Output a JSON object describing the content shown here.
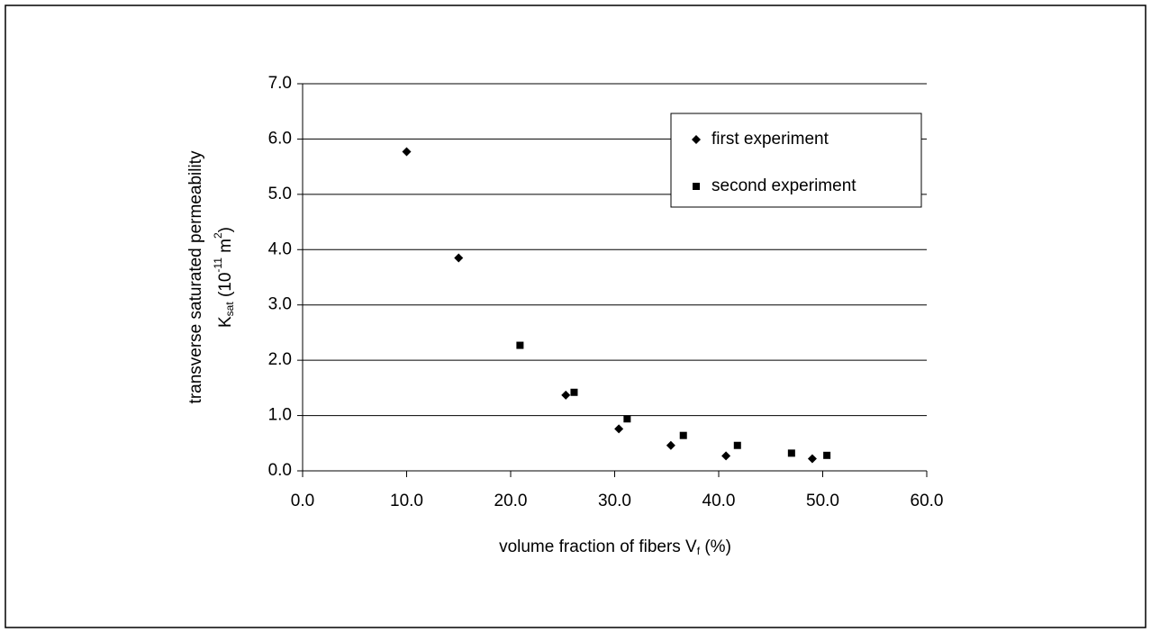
{
  "chart_data": {
    "type": "scatter",
    "x_label_parts": [
      "volume fraction of fibers V",
      "f",
      " (%)"
    ],
    "y_label_line1": "transverse saturated permeability",
    "y_label_parts": [
      "K",
      "sat",
      " (10",
      "-11",
      " m",
      "2",
      ")"
    ],
    "series": [
      {
        "name": "first experiment",
        "marker": "diamond",
        "color": "#000000",
        "x": [
          10.0,
          15.0,
          25.3,
          30.4,
          35.4,
          40.7,
          49.0
        ],
        "values": [
          5.77,
          3.85,
          1.37,
          0.76,
          0.46,
          0.27,
          0.22
        ]
      },
      {
        "name": "second experiment",
        "marker": "square",
        "color": "#000000",
        "x": [
          20.9,
          26.1,
          31.2,
          36.6,
          41.8,
          47.0,
          50.4
        ],
        "values": [
          2.27,
          1.42,
          0.94,
          0.64,
          0.46,
          0.32,
          0.28
        ]
      }
    ],
    "xlim": [
      0,
      60
    ],
    "xticks": [
      {
        "value": 0,
        "label": "0.0"
      },
      {
        "value": 10,
        "label": "10.0"
      },
      {
        "value": 20,
        "label": "20.0"
      },
      {
        "value": 30,
        "label": "30.0"
      },
      {
        "value": 40,
        "label": "40.0"
      },
      {
        "value": 50,
        "label": "50.0"
      },
      {
        "value": 60,
        "label": "60.0"
      }
    ],
    "ylim": [
      0,
      7
    ],
    "yticks": [
      {
        "value": 0,
        "label": "0.0"
      },
      {
        "value": 1,
        "label": "1.0"
      },
      {
        "value": 2,
        "label": "2.0"
      },
      {
        "value": 3,
        "label": "3.0"
      },
      {
        "value": 4,
        "label": "4.0"
      },
      {
        "value": 5,
        "label": "5.0"
      },
      {
        "value": 6,
        "label": "6.0"
      },
      {
        "value": 7,
        "label": "7.0"
      }
    ],
    "grid": true
  }
}
